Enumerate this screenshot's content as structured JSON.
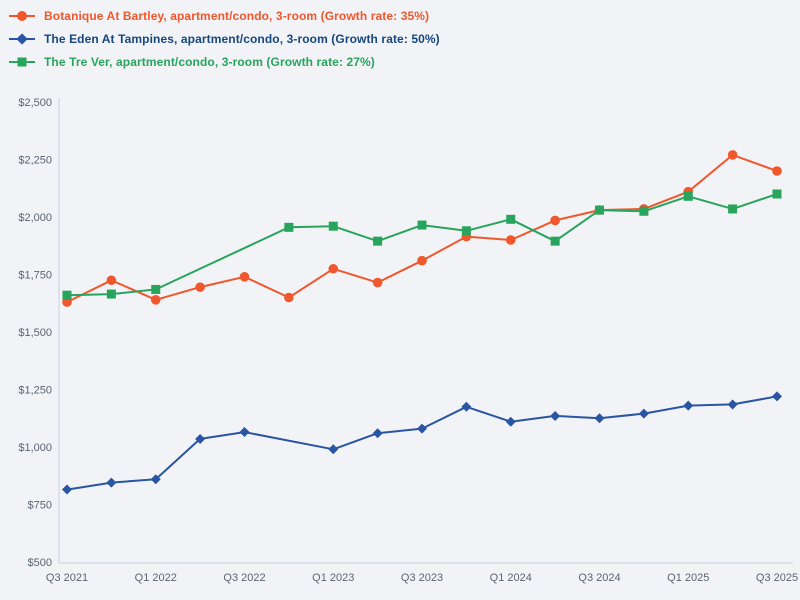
{
  "background_color": "#F1F3F6",
  "axis_line_color": "#C8D1E0",
  "tick_label_color": "#5C6571",
  "chart_data": {
    "type": "line",
    "title": "",
    "xlabel": "",
    "ylabel": "",
    "grid": false,
    "legend_position": "top-left",
    "x_categories": [
      "Q3 2021",
      "Q4 2021",
      "Q1 2022",
      "Q2 2022",
      "Q3 2022",
      "Q4 2022",
      "Q1 2023",
      "Q2 2023",
      "Q3 2023",
      "Q4 2023",
      "Q1 2024",
      "Q2 2024",
      "Q3 2024",
      "Q4 2024",
      "Q1 2025",
      "Q2 2025",
      "Q3 2025"
    ],
    "x_tick_labels": [
      "Q3 2021",
      "Q1 2022",
      "Q3 2022",
      "Q1 2023",
      "Q3 2023",
      "Q1 2024",
      "Q3 2024",
      "Q1 2025",
      "Q3 2025"
    ],
    "y_axis": {
      "min": 500,
      "max": 2500,
      "step": 250,
      "prefix": "$",
      "tick_labels": [
        "$500",
        "$750",
        "$1,000",
        "$1,250",
        "$1,500",
        "$1,750",
        "$2,000",
        "$2,250",
        "$2,500"
      ]
    },
    "series": [
      {
        "name": "Botanique At Bartley",
        "legend_label": "Botanique At Bartley, apartment/condo, 3-room (Growth rate: 35%)",
        "growth_rate": "35%",
        "marker": "circle",
        "color": "#F1572D",
        "text_color": "#F1572D",
        "values": [
          1630,
          1725,
          1640,
          1695,
          1740,
          1650,
          1775,
          1715,
          1810,
          1915,
          1900,
          1985,
          2030,
          2035,
          2110,
          2270,
          2200
        ]
      },
      {
        "name": "The Eden At Tampines",
        "legend_label": "The Eden At Tampines, apartment/condo, 3-room (Growth rate: 50%)",
        "growth_rate": "50%",
        "marker": "diamond",
        "color": "#2A55A2",
        "text_color": "#17477E",
        "values": [
          815,
          845,
          860,
          1035,
          1065,
          null,
          990,
          1060,
          1080,
          1175,
          1110,
          1135,
          1125,
          1145,
          1180,
          1185,
          1220
        ]
      },
      {
        "name": "The Tre Ver",
        "legend_label": "The Tre Ver, apartment/condo, 3-room (Growth rate: 27%)",
        "growth_rate": "27%",
        "marker": "square",
        "color": "#28A45C",
        "text_color": "#28A45C",
        "values": [
          1660,
          1665,
          1685,
          null,
          null,
          1955,
          1960,
          1895,
          1965,
          1940,
          1990,
          1895,
          2030,
          2025,
          2090,
          2035,
          2100
        ]
      }
    ]
  }
}
